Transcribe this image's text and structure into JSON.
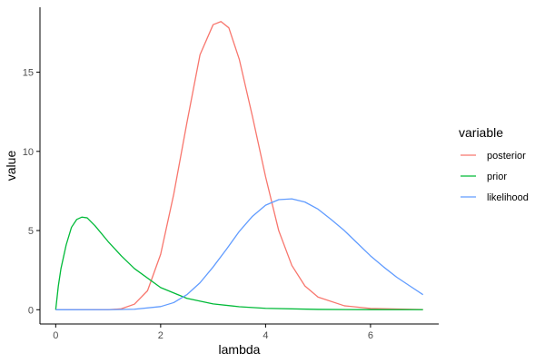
{
  "chart_data": {
    "type": "line",
    "title": "",
    "xlabel": "lambda",
    "ylabel": "value",
    "xlim": [
      0,
      7
    ],
    "ylim": [
      0,
      18.2
    ],
    "xticks": [
      0,
      2,
      4,
      6
    ],
    "xtick_labels": [
      "0",
      "2",
      "4",
      "6"
    ],
    "yticks": [
      0,
      5,
      10,
      15
    ],
    "ytick_labels": [
      "0",
      "5",
      "10",
      "15"
    ],
    "grid": false,
    "legend": {
      "title": "variable",
      "placement": "right"
    },
    "series": [
      {
        "name": "posterior",
        "color": "#F8766D",
        "x": [
          0,
          1,
          1.25,
          1.5,
          1.75,
          2,
          2.25,
          2.5,
          2.75,
          3,
          3.15,
          3.3,
          3.5,
          3.75,
          4,
          4.25,
          4.5,
          4.75,
          5,
          5.5,
          6,
          7
        ],
        "y": [
          0,
          0,
          0.06,
          0.35,
          1.2,
          3.5,
          7.3,
          11.8,
          16.1,
          18.0,
          18.2,
          17.8,
          15.8,
          12.2,
          8.4,
          5.0,
          2.8,
          1.5,
          0.8,
          0.25,
          0.08,
          0.01
        ]
      },
      {
        "name": "prior",
        "color": "#00BA38",
        "x": [
          0,
          0.05,
          0.1,
          0.2,
          0.3,
          0.4,
          0.5,
          0.6,
          0.75,
          1,
          1.25,
          1.5,
          2,
          2.5,
          3,
          3.5,
          4,
          5,
          6,
          7
        ],
        "y": [
          0,
          1.5,
          2.6,
          4.1,
          5.2,
          5.7,
          5.85,
          5.8,
          5.3,
          4.3,
          3.4,
          2.6,
          1.4,
          0.72,
          0.37,
          0.19,
          0.09,
          0.02,
          0.005,
          0.001
        ]
      },
      {
        "name": "likelihood",
        "color": "#619CFF",
        "x": [
          0,
          1,
          1.5,
          2,
          2.25,
          2.5,
          2.75,
          3,
          3.25,
          3.5,
          3.75,
          4,
          4.25,
          4.5,
          4.75,
          5,
          5.25,
          5.5,
          5.75,
          6,
          6.25,
          6.5,
          6.75,
          7
        ],
        "y": [
          0,
          0.003,
          0.03,
          0.2,
          0.45,
          0.95,
          1.7,
          2.7,
          3.8,
          4.95,
          5.9,
          6.6,
          6.95,
          7.0,
          6.8,
          6.35,
          5.7,
          5.0,
          4.2,
          3.4,
          2.7,
          2.05,
          1.5,
          0.95
        ]
      }
    ]
  }
}
